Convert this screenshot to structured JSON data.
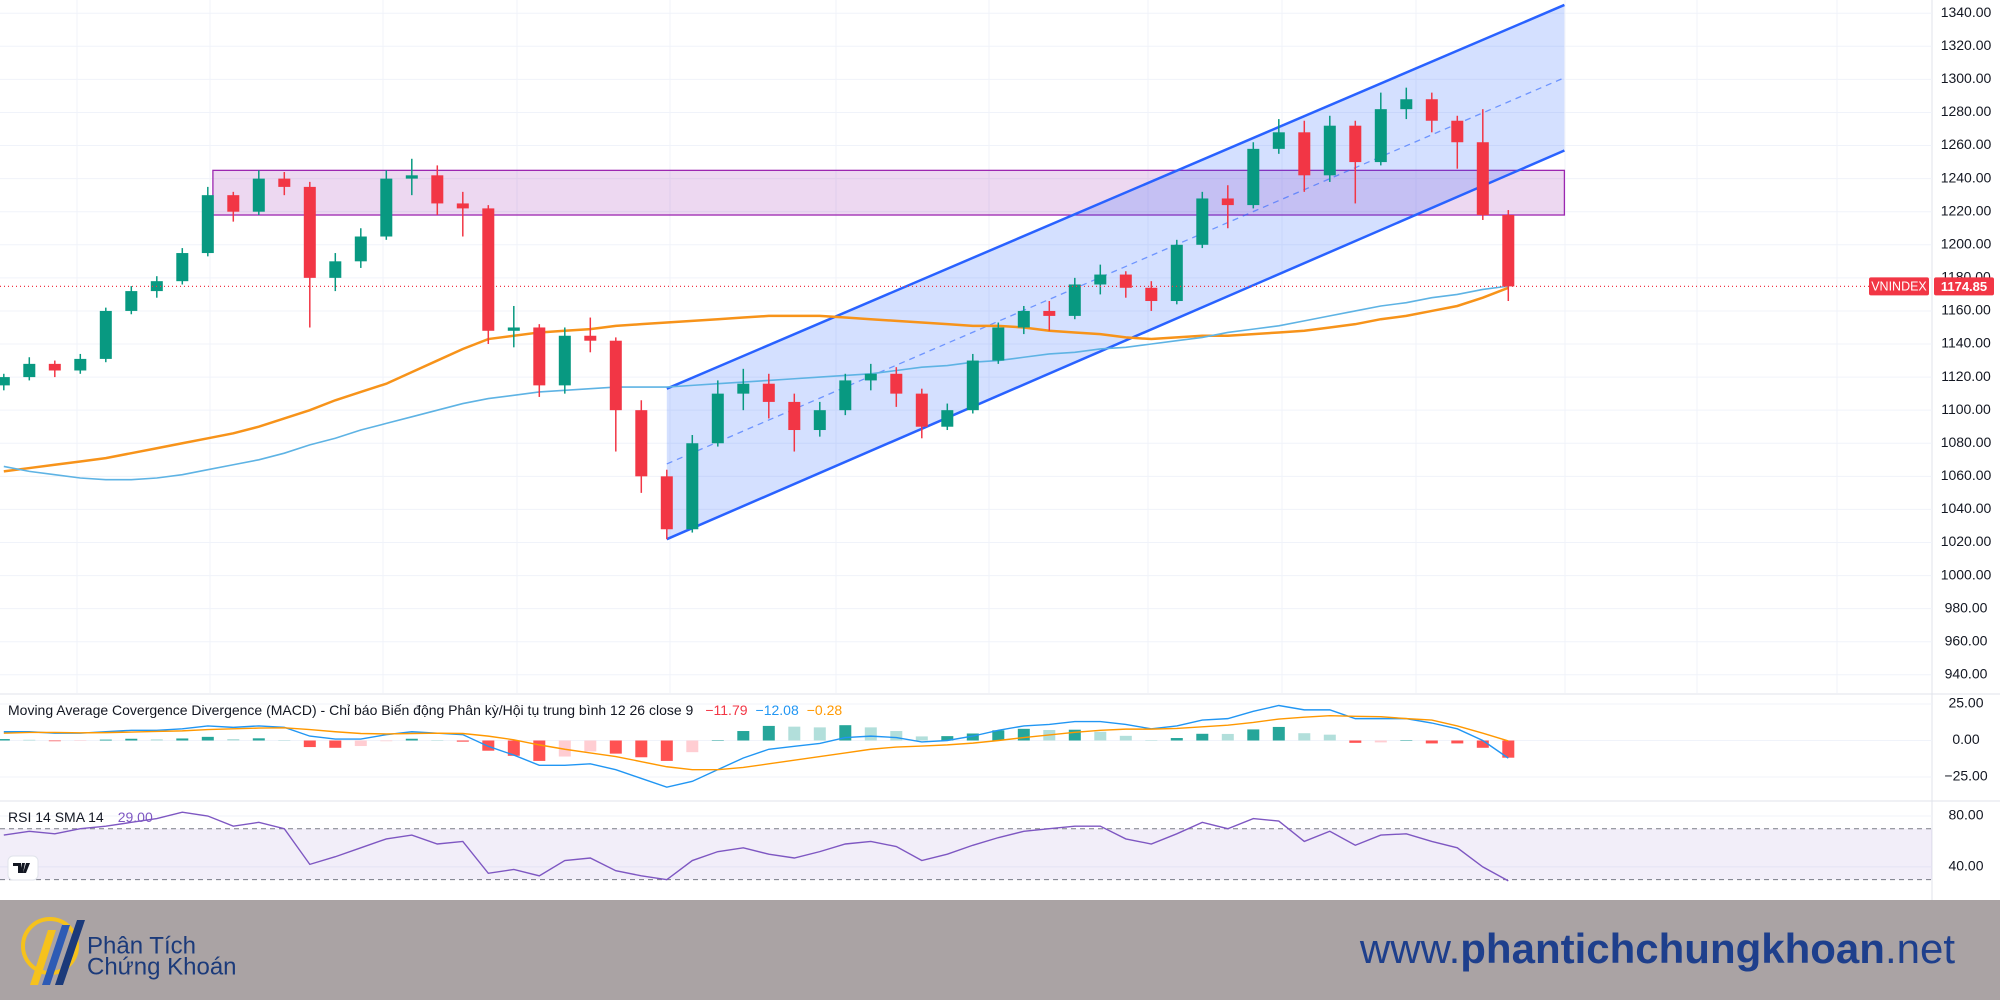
{
  "chart_data": {
    "type": "candlestick",
    "symbol": "VNINDEX",
    "up_color": "#089981",
    "down_color": "#f23645",
    "candles": [
      [
        1115,
        1122,
        1112,
        1120
      ],
      [
        1120,
        1132,
        1118,
        1128
      ],
      [
        1128,
        1130,
        1120,
        1124
      ],
      [
        1124,
        1134,
        1122,
        1131
      ],
      [
        1131,
        1162,
        1129,
        1160
      ],
      [
        1160,
        1175,
        1158,
        1172
      ],
      [
        1172,
        1181,
        1168,
        1178
      ],
      [
        1178,
        1198,
        1176,
        1195
      ],
      [
        1195,
        1235,
        1193,
        1230
      ],
      [
        1230,
        1232,
        1214,
        1220
      ],
      [
        1220,
        1245,
        1218,
        1240
      ],
      [
        1240,
        1244,
        1230,
        1235
      ],
      [
        1235,
        1238,
        1150,
        1180
      ],
      [
        1180,
        1195,
        1172,
        1190
      ],
      [
        1190,
        1210,
        1186,
        1205
      ],
      [
        1205,
        1245,
        1203,
        1240
      ],
      [
        1240,
        1252,
        1230,
        1242
      ],
      [
        1242,
        1248,
        1218,
        1225
      ],
      [
        1225,
        1232,
        1205,
        1222
      ],
      [
        1222,
        1224,
        1140,
        1148
      ],
      [
        1148,
        1163,
        1138,
        1150
      ],
      [
        1150,
        1152,
        1108,
        1115
      ],
      [
        1115,
        1150,
        1110,
        1145
      ],
      [
        1145,
        1156,
        1135,
        1142
      ],
      [
        1142,
        1144,
        1075,
        1100
      ],
      [
        1100,
        1106,
        1050,
        1060
      ],
      [
        1060,
        1064,
        1022,
        1028
      ],
      [
        1028,
        1085,
        1026,
        1080
      ],
      [
        1080,
        1118,
        1078,
        1110
      ],
      [
        1110,
        1125,
        1100,
        1116
      ],
      [
        1116,
        1122,
        1095,
        1105
      ],
      [
        1105,
        1110,
        1075,
        1088
      ],
      [
        1088,
        1105,
        1084,
        1100
      ],
      [
        1100,
        1122,
        1097,
        1118
      ],
      [
        1118,
        1128,
        1112,
        1122
      ],
      [
        1122,
        1126,
        1102,
        1110
      ],
      [
        1110,
        1113,
        1083,
        1090
      ],
      [
        1090,
        1104,
        1088,
        1100
      ],
      [
        1100,
        1134,
        1098,
        1130
      ],
      [
        1130,
        1153,
        1128,
        1150
      ],
      [
        1150,
        1163,
        1146,
        1160
      ],
      [
        1160,
        1166,
        1148,
        1157
      ],
      [
        1157,
        1180,
        1155,
        1176
      ],
      [
        1176,
        1188,
        1170,
        1182
      ],
      [
        1182,
        1184,
        1168,
        1174
      ],
      [
        1174,
        1178,
        1160,
        1166
      ],
      [
        1166,
        1203,
        1164,
        1200
      ],
      [
        1200,
        1232,
        1198,
        1228
      ],
      [
        1228,
        1236,
        1210,
        1224
      ],
      [
        1224,
        1262,
        1222,
        1258
      ],
      [
        1258,
        1276,
        1255,
        1268
      ],
      [
        1268,
        1275,
        1232,
        1242
      ],
      [
        1242,
        1278,
        1238,
        1272
      ],
      [
        1272,
        1275,
        1225,
        1250
      ],
      [
        1250,
        1292,
        1248,
        1282
      ],
      [
        1282,
        1295,
        1276,
        1288
      ],
      [
        1288,
        1292,
        1268,
        1275
      ],
      [
        1275,
        1278,
        1246,
        1262
      ],
      [
        1262,
        1282,
        1215,
        1218
      ],
      [
        1218,
        1221,
        1166,
        1174.85
      ]
    ],
    "ylim": [
      929,
      1348
    ],
    "yticks": [
      {
        "value": 940,
        "label": "940.00"
      },
      {
        "value": 960,
        "label": "960.00"
      },
      {
        "value": 980,
        "label": "980.00"
      },
      {
        "value": 1000,
        "label": "1000.00"
      },
      {
        "value": 1020,
        "label": "1020.00"
      },
      {
        "value": 1040,
        "label": "1040.00"
      },
      {
        "value": 1060,
        "label": "1060.00"
      },
      {
        "value": 1080,
        "label": "1080.00"
      },
      {
        "value": 1100,
        "label": "1100.00"
      },
      {
        "value": 1120,
        "label": "1120.00"
      },
      {
        "value": 1140,
        "label": "1140.00"
      },
      {
        "value": 1160,
        "label": "1160.00"
      },
      {
        "value": 1180,
        "label": "1180.00"
      },
      {
        "value": 1200,
        "label": "1200.00"
      },
      {
        "value": 1220,
        "label": "1220.00"
      },
      {
        "value": 1240,
        "label": "1240.00"
      },
      {
        "value": 1260,
        "label": "1260.00"
      },
      {
        "value": 1280,
        "label": "1280.00"
      },
      {
        "value": 1300,
        "label": "1300.00"
      },
      {
        "value": 1320,
        "label": "1320.00"
      },
      {
        "value": 1340,
        "label": "1340.00"
      }
    ],
    "moving_averages": [
      {
        "color": "#f7931a",
        "values": [
          1063,
          1065,
          1067,
          1069,
          1071,
          1074,
          1077,
          1080,
          1083,
          1086,
          1090,
          1095,
          1100,
          1106,
          1111,
          1116,
          1123,
          1130,
          1137,
          1143,
          1145,
          1147,
          1148,
          1149,
          1151,
          1152,
          1153,
          1154,
          1155,
          1156,
          1157,
          1157,
          1157,
          1156,
          1155,
          1154,
          1153,
          1152,
          1151,
          1151,
          1150,
          1148,
          1147,
          1146,
          1144,
          1143,
          1144,
          1145,
          1145,
          1146,
          1147,
          1148,
          1150,
          1152,
          1155,
          1157,
          1160,
          1163,
          1168,
          1174
        ]
      },
      {
        "color": "#5eb3e4",
        "values": [
          1066,
          1063,
          1061,
          1059,
          1058,
          1058,
          1059,
          1061,
          1064,
          1067,
          1070,
          1074,
          1079,
          1083,
          1088,
          1092,
          1096,
          1100,
          1104,
          1107,
          1109,
          1111,
          1112,
          1113,
          1114,
          1114,
          1114,
          1115,
          1116,
          1117,
          1118,
          1119,
          1120,
          1121,
          1122,
          1124,
          1126,
          1127,
          1129,
          1130,
          1132,
          1134,
          1135,
          1137,
          1138,
          1140,
          1142,
          1144,
          1147,
          1149,
          1151,
          1154,
          1157,
          1160,
          1163,
          1165,
          1168,
          1170,
          1173,
          1175
        ]
      }
    ],
    "zone": {
      "start": 8.2,
      "end": 61.2,
      "from": 1218,
      "to": 1245,
      "color": "#9c27b0"
    },
    "channel": {
      "start": 26,
      "end": 61.2,
      "upper": [
        1113,
        1345
      ],
      "lower": [
        1022,
        1257
      ],
      "color": "#2962ff"
    },
    "macd": {
      "title": "Moving Average Covergence Divergence (MACD) - Chỉ báo Biến động Phân kỳ/Hội tụ trung bình 12 26 close 9",
      "readouts": [
        {
          "value": -11.79,
          "label": "−11.79",
          "color": "#f23645"
        },
        {
          "value": -12.08,
          "label": "−12.08",
          "color": "#2196f3"
        },
        {
          "value": -0.28,
          "label": "−0.28",
          "color": "#ff9800"
        }
      ],
      "ylim": [
        -40.8,
        31.2
      ],
      "yticks": [
        {
          "value": 25,
          "label": "25.00"
        },
        {
          "value": 0,
          "label": "0.00"
        },
        {
          "value": -25,
          "label": "−25.00"
        }
      ],
      "macd": [
        6,
        6,
        5,
        5,
        6,
        7,
        7,
        8,
        10,
        9,
        10,
        9,
        3,
        1,
        1,
        4,
        6,
        5,
        4,
        -4,
        -10,
        -17,
        -17,
        -16,
        -20,
        -26,
        -32,
        -28,
        -20,
        -12,
        -6,
        -4,
        -2,
        2,
        3,
        2,
        -1,
        0,
        3,
        7,
        10,
        11,
        13,
        13,
        11,
        8,
        10,
        14,
        15,
        20,
        24,
        21,
        21,
        15,
        15,
        15,
        12,
        8,
        0,
        -12.08
      ],
      "signal": [
        5,
        5.5,
        5.5,
        5.3,
        5.4,
        5.8,
        6.2,
        6.6,
        7.5,
        8,
        8.5,
        8.7,
        7.5,
        6,
        4.8,
        4.5,
        4.8,
        5,
        4.8,
        3,
        0.5,
        -3,
        -6,
        -8.5,
        -11,
        -14.5,
        -18,
        -20,
        -20,
        -18.5,
        -16,
        -13.5,
        -11,
        -8.5,
        -6,
        -4.5,
        -3.8,
        -3,
        -1.8,
        0,
        2,
        3.8,
        5.6,
        7,
        7.8,
        7.8,
        8.3,
        9.4,
        10.5,
        12.4,
        14.7,
        16,
        17,
        16.6,
        16.3,
        15,
        14,
        10,
        5,
        -0.28
      ],
      "histogram": [
        1,
        0.5,
        -0.5,
        -0.3,
        0.6,
        1.2,
        0.8,
        1.4,
        2.5,
        1,
        1.5,
        0.3,
        -4.5,
        -5,
        -3.8,
        -0.5,
        1.2,
        0,
        -0.8,
        -7,
        -10.5,
        -14,
        -11,
        -7.5,
        -9,
        -11.5,
        -14,
        -8,
        0,
        6.5,
        10,
        9.5,
        9,
        10.5,
        9,
        6.5,
        2.8,
        3,
        4.8,
        7,
        8,
        7.2,
        7.4,
        6,
        3.2,
        0.2,
        1.7,
        4.6,
        4.5,
        7.6,
        9.3,
        5,
        4,
        -1.6,
        -1.3,
        0,
        -2,
        -2,
        -5,
        -11.79
      ]
    },
    "rsi": {
      "title": "RSI 14 SMA 14",
      "readout": {
        "value": 29,
        "label": "29.00"
      },
      "color": "#7e57c2",
      "ylim": [
        14,
        91
      ],
      "yticks": [
        {
          "value": 80,
          "label": "80.00"
        },
        {
          "value": 40,
          "label": "40.00"
        }
      ],
      "bands": [
        30,
        70
      ],
      "values": [
        65,
        68,
        66,
        70,
        72,
        75,
        78,
        83,
        80,
        72,
        75,
        70,
        42,
        48,
        55,
        62,
        65,
        58,
        60,
        35,
        38,
        33,
        45,
        47,
        37,
        33,
        30,
        45,
        52,
        55,
        50,
        47,
        52,
        58,
        60,
        56,
        45,
        50,
        57,
        63,
        68,
        70,
        72,
        72,
        62,
        58,
        66,
        75,
        70,
        78,
        76,
        60,
        68,
        57,
        65,
        66,
        60,
        55,
        40,
        29
      ]
    }
  },
  "footer": {
    "brand_line1": "Phân Tích",
    "brand_line2": "Chứng Khoán",
    "url_parts": [
      "www.",
      "phantichchungkhoan",
      ".net"
    ]
  }
}
